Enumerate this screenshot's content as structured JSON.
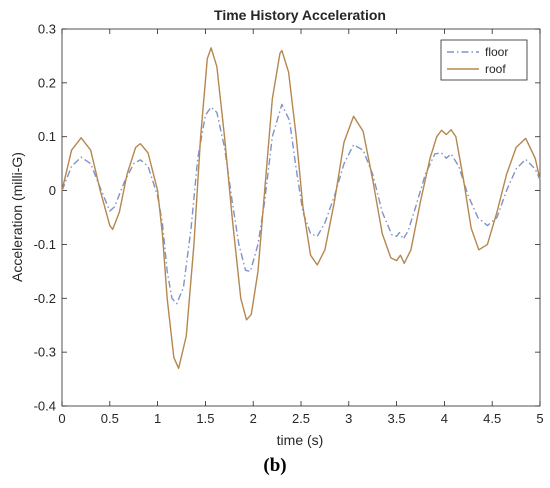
{
  "caption": "(b)",
  "chart_data": {
    "type": "line",
    "title": "Time History Acceleration",
    "xlabel": "time (s)",
    "ylabel": "Acceleration (milli-G)",
    "xlim": [
      0,
      5
    ],
    "ylim": [
      -0.4,
      0.3
    ],
    "xticks": [
      0,
      0.5,
      1,
      1.5,
      2,
      2.5,
      3,
      3.5,
      4,
      4.5,
      5
    ],
    "xtick_labels": [
      "0",
      "0.5",
      "1",
      "1.5",
      "2",
      "2.5",
      "3",
      "3.5",
      "4",
      "4.5",
      "5"
    ],
    "yticks": [
      -0.4,
      -0.3,
      -0.2,
      -0.1,
      0,
      0.1,
      0.2,
      0.3
    ],
    "ytick_labels": [
      "-0.4",
      "-0.3",
      "-0.2",
      "-0.1",
      "0",
      "0.1",
      "0.2",
      "0.3"
    ],
    "grid": false,
    "legend_position": "top-right",
    "series": [
      {
        "name": "floor",
        "color": "#7f93c8",
        "dash": "dash-dot",
        "points": [
          [
            0,
            0.0
          ],
          [
            0.1,
            0.045
          ],
          [
            0.2,
            0.062
          ],
          [
            0.3,
            0.05
          ],
          [
            0.4,
            0.005
          ],
          [
            0.5,
            -0.038
          ],
          [
            0.55,
            -0.03
          ],
          [
            0.65,
            0.015
          ],
          [
            0.75,
            0.05
          ],
          [
            0.82,
            0.057
          ],
          [
            0.9,
            0.045
          ],
          [
            1.0,
            -0.01
          ],
          [
            1.05,
            -0.06
          ],
          [
            1.1,
            -0.15
          ],
          [
            1.15,
            -0.2
          ],
          [
            1.2,
            -0.21
          ],
          [
            1.27,
            -0.18
          ],
          [
            1.35,
            -0.07
          ],
          [
            1.42,
            0.06
          ],
          [
            1.5,
            0.14
          ],
          [
            1.56,
            0.155
          ],
          [
            1.62,
            0.145
          ],
          [
            1.7,
            0.08
          ],
          [
            1.78,
            -0.02
          ],
          [
            1.85,
            -0.1
          ],
          [
            1.92,
            -0.148
          ],
          [
            1.97,
            -0.15
          ],
          [
            2.05,
            -0.1
          ],
          [
            2.12,
            -0.02
          ],
          [
            2.2,
            0.1
          ],
          [
            2.3,
            0.16
          ],
          [
            2.38,
            0.13
          ],
          [
            2.45,
            0.04
          ],
          [
            2.52,
            -0.04
          ],
          [
            2.6,
            -0.08
          ],
          [
            2.67,
            -0.085
          ],
          [
            2.75,
            -0.06
          ],
          [
            2.85,
            -0.01
          ],
          [
            2.95,
            0.05
          ],
          [
            3.05,
            0.085
          ],
          [
            3.15,
            0.075
          ],
          [
            3.25,
            0.03
          ],
          [
            3.35,
            -0.04
          ],
          [
            3.45,
            -0.082
          ],
          [
            3.5,
            -0.085
          ],
          [
            3.53,
            -0.078
          ],
          [
            3.57,
            -0.09
          ],
          [
            3.62,
            -0.075
          ],
          [
            3.7,
            -0.03
          ],
          [
            3.8,
            0.03
          ],
          [
            3.9,
            0.068
          ],
          [
            3.97,
            0.07
          ],
          [
            4.02,
            0.06
          ],
          [
            4.07,
            0.068
          ],
          [
            4.15,
            0.045
          ],
          [
            4.25,
            -0.01
          ],
          [
            4.35,
            -0.05
          ],
          [
            4.45,
            -0.065
          ],
          [
            4.55,
            -0.05
          ],
          [
            4.65,
            0.0
          ],
          [
            4.75,
            0.04
          ],
          [
            4.85,
            0.058
          ],
          [
            4.95,
            0.04
          ],
          [
            5.0,
            0.02
          ]
        ]
      },
      {
        "name": "roof",
        "color": "#b5874f",
        "dash": "solid",
        "points": [
          [
            0,
            0.0
          ],
          [
            0.1,
            0.075
          ],
          [
            0.2,
            0.098
          ],
          [
            0.3,
            0.075
          ],
          [
            0.4,
            0.0
          ],
          [
            0.5,
            -0.065
          ],
          [
            0.53,
            -0.072
          ],
          [
            0.6,
            -0.04
          ],
          [
            0.68,
            0.03
          ],
          [
            0.77,
            0.08
          ],
          [
            0.82,
            0.087
          ],
          [
            0.9,
            0.07
          ],
          [
            1.0,
            0.0
          ],
          [
            1.05,
            -0.08
          ],
          [
            1.1,
            -0.2
          ],
          [
            1.17,
            -0.31
          ],
          [
            1.22,
            -0.33
          ],
          [
            1.3,
            -0.27
          ],
          [
            1.38,
            -0.1
          ],
          [
            1.45,
            0.1
          ],
          [
            1.52,
            0.245
          ],
          [
            1.56,
            0.265
          ],
          [
            1.62,
            0.23
          ],
          [
            1.7,
            0.1
          ],
          [
            1.78,
            -0.05
          ],
          [
            1.87,
            -0.2
          ],
          [
            1.93,
            -0.24
          ],
          [
            1.98,
            -0.23
          ],
          [
            2.05,
            -0.15
          ],
          [
            2.12,
            0.0
          ],
          [
            2.2,
            0.17
          ],
          [
            2.28,
            0.255
          ],
          [
            2.3,
            0.26
          ],
          [
            2.37,
            0.22
          ],
          [
            2.45,
            0.1
          ],
          [
            2.52,
            -0.03
          ],
          [
            2.6,
            -0.12
          ],
          [
            2.67,
            -0.138
          ],
          [
            2.75,
            -0.11
          ],
          [
            2.85,
            -0.02
          ],
          [
            2.95,
            0.09
          ],
          [
            3.05,
            0.138
          ],
          [
            3.15,
            0.11
          ],
          [
            3.25,
            0.02
          ],
          [
            3.35,
            -0.08
          ],
          [
            3.44,
            -0.125
          ],
          [
            3.5,
            -0.13
          ],
          [
            3.54,
            -0.12
          ],
          [
            3.58,
            -0.135
          ],
          [
            3.65,
            -0.11
          ],
          [
            3.75,
            -0.02
          ],
          [
            3.85,
            0.06
          ],
          [
            3.92,
            0.1
          ],
          [
            3.97,
            0.112
          ],
          [
            4.02,
            0.104
          ],
          [
            4.07,
            0.113
          ],
          [
            4.12,
            0.1
          ],
          [
            4.2,
            0.02
          ],
          [
            4.28,
            -0.07
          ],
          [
            4.36,
            -0.11
          ],
          [
            4.45,
            -0.1
          ],
          [
            4.55,
            -0.04
          ],
          [
            4.65,
            0.03
          ],
          [
            4.75,
            0.08
          ],
          [
            4.85,
            0.097
          ],
          [
            4.95,
            0.06
          ],
          [
            5.0,
            0.02
          ]
        ]
      }
    ]
  }
}
